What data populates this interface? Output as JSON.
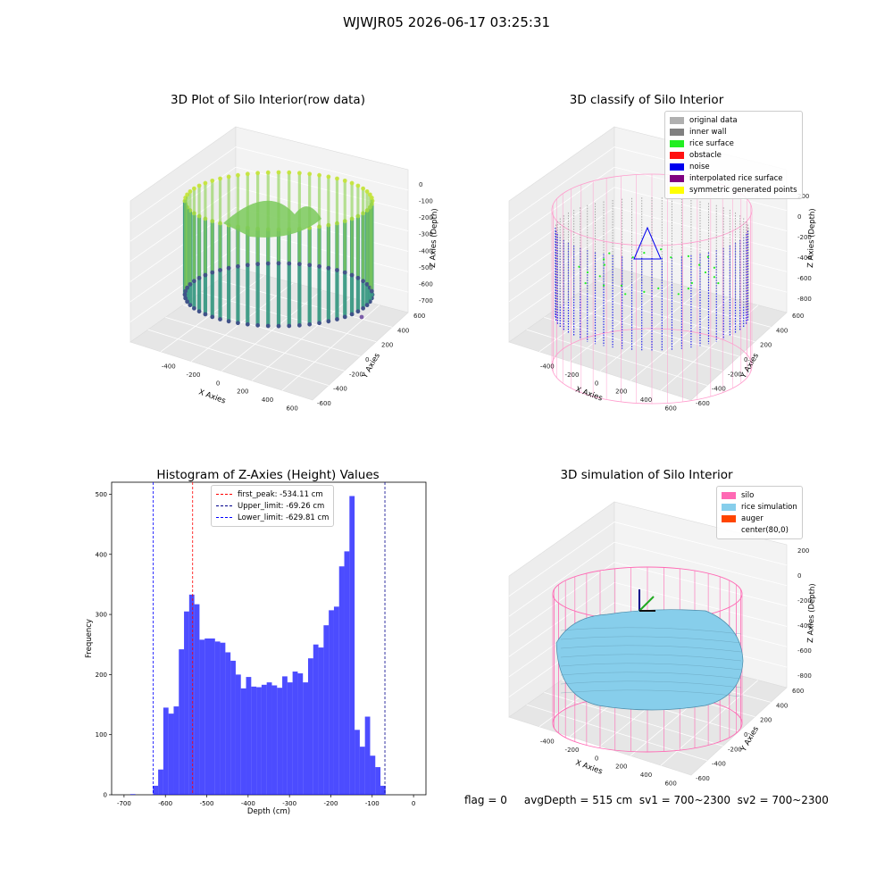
{
  "suptitle": "WJWJR05 2026-06-17 03:25:31",
  "panels": {
    "raw": {
      "title": "3D Plot of Silo Interior(row data)",
      "xlabel": "X Axies",
      "ylabel": "Y Axies",
      "zlabel": "Z Axies (Depth)",
      "xticks": [
        "-400",
        "-200",
        "0",
        "200",
        "400",
        "600"
      ],
      "yticks": [
        "-600",
        "-400",
        "-200",
        "0",
        "200",
        "400",
        "600"
      ],
      "zticks": [
        "0",
        "-100",
        "-200",
        "-300",
        "-400",
        "-500",
        "-600",
        "-700"
      ]
    },
    "classify": {
      "title": "3D classify of Silo Interior",
      "xlabel": "X Axies",
      "ylabel": "Y Axies",
      "zlabel": "Z Axies (Depth)",
      "xticks": [
        "-400",
        "-200",
        "0",
        "200",
        "400",
        "600"
      ],
      "yticks": [
        "-600",
        "-400",
        "-200",
        "0",
        "200",
        "400",
        "600"
      ],
      "zticks": [
        "200",
        "0",
        "-200",
        "-400",
        "-600",
        "-800"
      ],
      "legend": [
        {
          "label": "original data",
          "color": "#b0b0b0"
        },
        {
          "label": "inner wall",
          "color": "#808080"
        },
        {
          "label": "rice surface",
          "color": "#22ee22"
        },
        {
          "label": "obstacle",
          "color": "#ff1111"
        },
        {
          "label": "noise",
          "color": "#0000ee"
        },
        {
          "label": "interpolated rice surface",
          "color": "#800080"
        },
        {
          "label": "symmetric generated points",
          "color": "#ffff00"
        }
      ]
    },
    "simulation": {
      "title": "3D simulation of Silo Interior",
      "xlabel": "X Axies",
      "ylabel": "Y Axies",
      "zlabel": "Z Axies (Depth)",
      "xticks": [
        "-400",
        "-200",
        "0",
        "200",
        "400",
        "600"
      ],
      "yticks": [
        "-600",
        "-400",
        "-200",
        "0",
        "200",
        "400",
        "600"
      ],
      "zticks": [
        "200",
        "0",
        "-200",
        "-400",
        "-600",
        "-800"
      ],
      "legend": [
        {
          "label": "silo",
          "color": "#ff69b4"
        },
        {
          "label": "rice simulation",
          "color": "#87ceeb"
        },
        {
          "label": "auger",
          "color": "#ff4500"
        },
        {
          "label": "center(80,0)",
          "color": ""
        }
      ]
    }
  },
  "chart_data": {
    "type": "bar",
    "title": "Histogram of Z-Axies (Height) Values",
    "xlabel": "Depth (cm)",
    "ylabel": "Frequency",
    "xlim": [
      -730,
      30
    ],
    "ylim": [
      0,
      520
    ],
    "xticks": [
      -700,
      -600,
      -500,
      -400,
      -300,
      -200,
      -100,
      0
    ],
    "yticks": [
      0,
      100,
      200,
      300,
      400,
      500
    ],
    "bar_color": "#0000ff",
    "bins": {
      "start": -630,
      "width": 12.5,
      "counts": [
        15,
        42,
        145,
        135,
        147,
        242,
        305,
        333,
        317,
        258,
        260,
        260,
        255,
        253,
        237,
        223,
        200,
        177,
        196,
        180,
        179,
        183,
        187,
        182,
        178,
        197,
        187,
        205,
        202,
        187,
        227,
        250,
        245,
        282,
        307,
        313,
        380,
        405,
        497,
        108,
        80,
        130,
        65,
        46,
        15
      ]
    },
    "outliers": [
      {
        "x": -685,
        "count": 1
      }
    ],
    "reference_lines": [
      {
        "label": "first_peak: -534.11 cm",
        "value": -534.11,
        "color": "#ff0000"
      },
      {
        "label": "Upper_limit: -69.26 cm",
        "value": -69.26,
        "color": "#00008b"
      },
      {
        "label": "Lower_limit: -629.81 cm",
        "value": -629.81,
        "color": "#0000ff"
      }
    ],
    "legend_position": "top-center"
  },
  "footer": {
    "text": "flag = 0     avgDepth = 515 cm  sv1 = 700~2300  sv2 = 700~2300"
  }
}
